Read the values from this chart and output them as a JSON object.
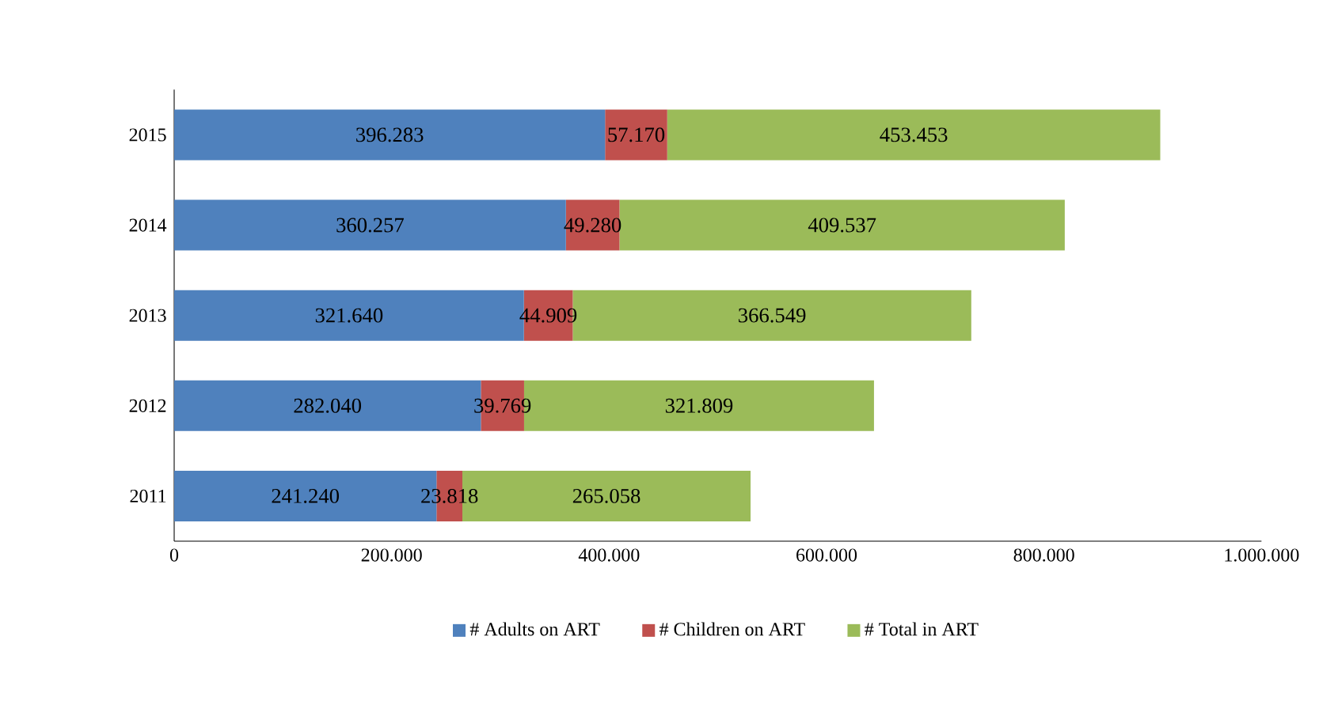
{
  "chart_data": {
    "type": "bar",
    "orientation": "horizontal",
    "stacked": true,
    "categories": [
      "2015",
      "2014",
      "2013",
      "2012",
      "2011"
    ],
    "series": [
      {
        "name": "# Adults on ART",
        "color": "#4f81bd",
        "values": [
          396283,
          360257,
          321640,
          282040,
          241240
        ],
        "value_labels": [
          "396.283",
          "360.257",
          "321.640",
          "282.040",
          "241.240"
        ]
      },
      {
        "name": "# Children on ART",
        "color": "#c0504d",
        "values": [
          57170,
          49280,
          44909,
          39769,
          23818
        ],
        "value_labels": [
          "57.170",
          "49.280",
          "44.909",
          "39.769",
          "23.818"
        ]
      },
      {
        "name": "# Total in ART",
        "color": "#9bbb59",
        "values": [
          453453,
          409537,
          366549,
          321809,
          265058
        ],
        "value_labels": [
          "453.453",
          "409.537",
          "366.549",
          "321.809",
          "265.058"
        ]
      }
    ],
    "xlim": [
      0,
      1000000
    ],
    "xticks": [
      0,
      {
        "value": 200000,
        "label": "200.000"
      },
      {
        "value": 400000,
        "label": "400.000"
      },
      {
        "value": 600000,
        "label": "600.000"
      },
      {
        "value": 800000,
        "label": "800.000"
      },
      {
        "value": 1000000,
        "label": "1.000.000"
      }
    ],
    "legend": "bottom",
    "grid": false
  }
}
